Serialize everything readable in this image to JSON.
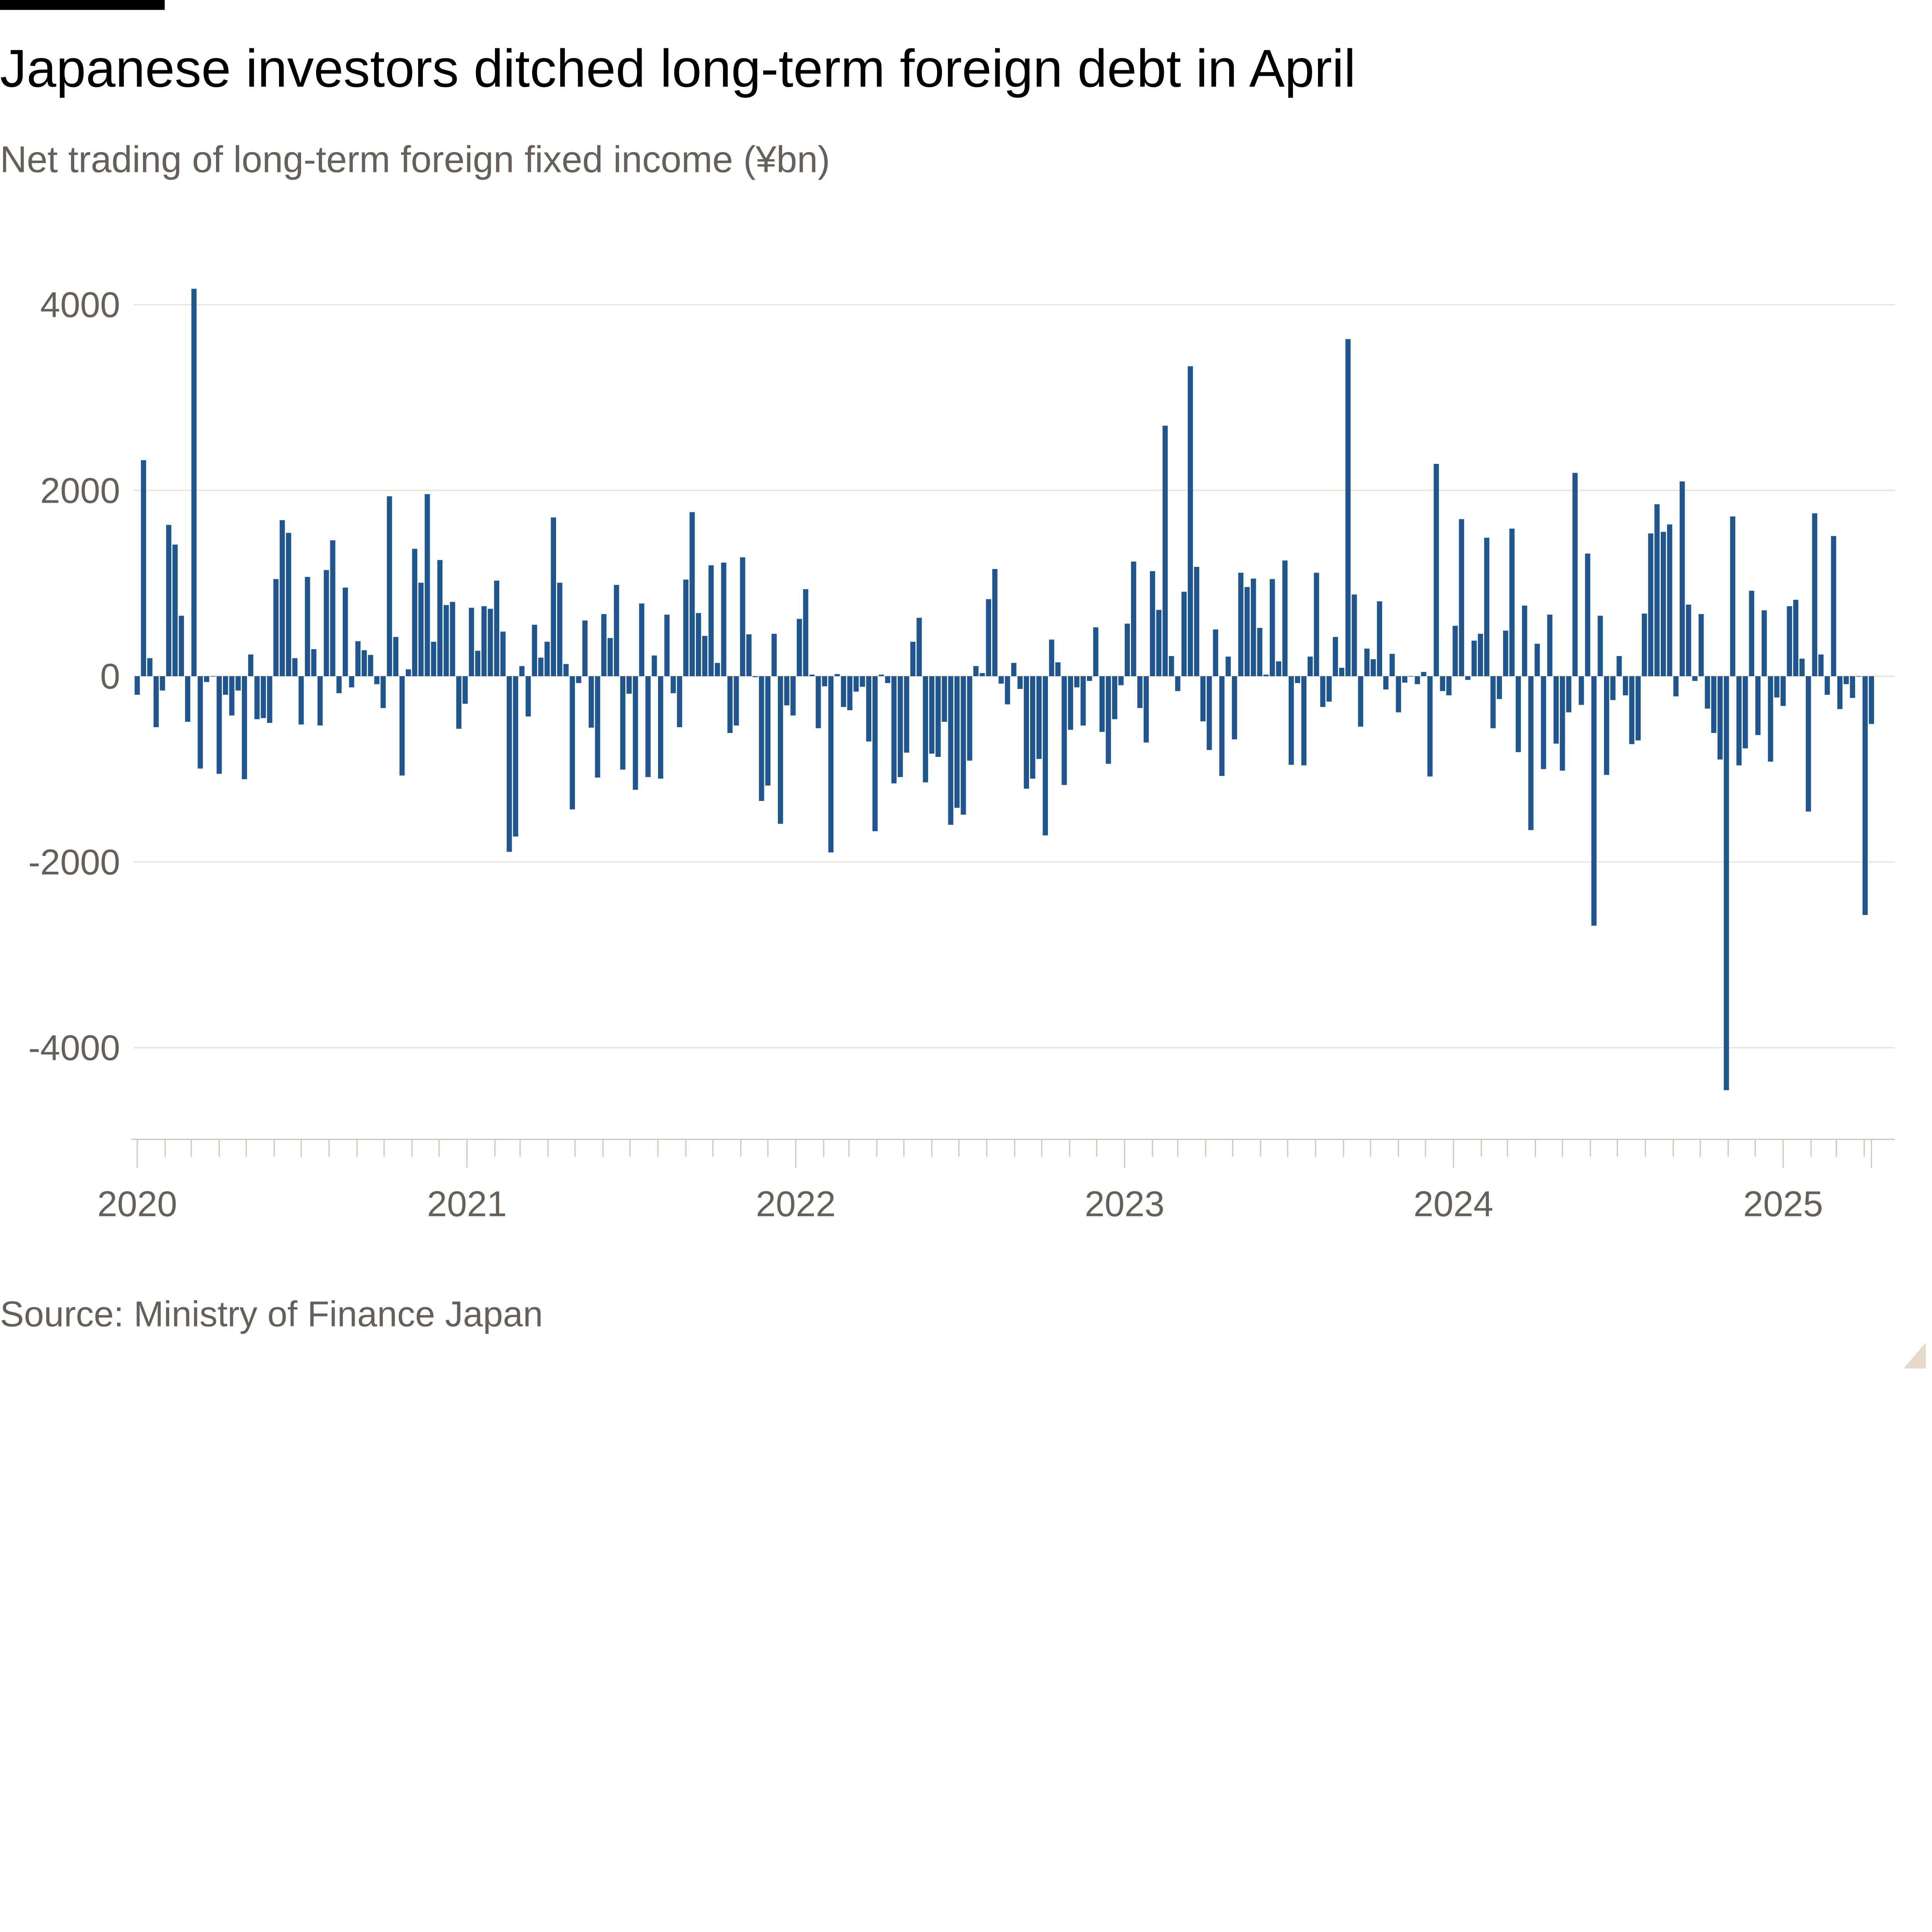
{
  "header": {
    "title": "Japanese investors ditched long-term foreign debt in April",
    "subtitle": "Net trading of long-term foreign fixed income (¥bn)"
  },
  "footer": {
    "source": "Source: Ministry of Finance Japan"
  },
  "colors": {
    "bar": "#1f5690",
    "grid": "#e9e2d8",
    "axis": "#cfc8c0",
    "text": "#66605c",
    "title": "#000000",
    "brand_bar": "#000000",
    "corner": "#e6d9cc"
  },
  "chart_data": {
    "type": "bar",
    "title": "Japanese investors ditched long-term foreign debt in April",
    "subtitle": "Net trading of long-term foreign fixed income (¥bn)",
    "xlabel": "",
    "ylabel": "",
    "frequency": "weekly",
    "x_range": [
      "2020-01",
      "2025-04"
    ],
    "xticks": [
      "2020",
      "2021",
      "2022",
      "2023",
      "2024",
      "2025"
    ],
    "yticks": [
      4000,
      2000,
      0,
      -2000,
      -4000
    ],
    "ylim": [
      -5000,
      4200
    ],
    "grid": true,
    "legend": "none",
    "values": [
      -200,
      2326,
      194,
      -549,
      -154,
      1629,
      1417,
      651,
      -491,
      4171,
      -994,
      -63,
      0,
      -1051,
      -200,
      -423,
      -154,
      -1109,
      234,
      -463,
      -451,
      -503,
      1046,
      1680,
      1543,
      194,
      -520,
      1069,
      291,
      -531,
      1143,
      1463,
      -183,
      954,
      -120,
      377,
      280,
      229,
      -86,
      -343,
      1937,
      423,
      -1069,
      74,
      1371,
      1006,
      1960,
      371,
      1251,
      766,
      800,
      -566,
      -297,
      737,
      274,
      754,
      726,
      1029,
      480,
      -1891,
      -1726,
      109,
      -434,
      554,
      200,
      371,
      1709,
      1006,
      131,
      -1434,
      -74,
      600,
      -554,
      -1091,
      669,
      411,
      983,
      -1006,
      -189,
      -1223,
      783,
      -1086,
      223,
      -1103,
      663,
      -183,
      -549,
      1040,
      1766,
      680,
      434,
      1194,
      143,
      1223,
      -611,
      -531,
      1280,
      451,
      -11,
      -1343,
      -1177,
      457,
      -1589,
      -314,
      -423,
      617,
      937,
      17,
      -560,
      -109,
      -1897,
      23,
      -331,
      -366,
      -166,
      -114,
      -703,
      -1669,
      17,
      -74,
      -1154,
      -1086,
      -823,
      371,
      629,
      -1143,
      -834,
      -869,
      -491,
      -1600,
      -1417,
      -1491,
      -909,
      109,
      34,
      829,
      1154,
      -80,
      -303,
      143,
      -137,
      -1211,
      -1103,
      -891,
      -1714,
      394,
      149,
      -1171,
      -577,
      -120,
      -531,
      -51,
      526,
      -600,
      -943,
      -463,
      -97,
      566,
      1234,
      -343,
      -714,
      1131,
      714,
      2697,
      217,
      -160,
      909,
      3337,
      1177,
      -486,
      -794,
      503,
      -1074,
      211,
      -680,
      1114,
      960,
      1051,
      520,
      17,
      1046,
      160,
      1246,
      -954,
      -74,
      -960,
      211,
      1114,
      -331,
      -274,
      423,
      91,
      3629,
      880,
      -543,
      297,
      183,
      806,
      -143,
      240,
      -389,
      -69,
      -5,
      -86,
      46,
      -1080,
      2286,
      -160,
      -206,
      543,
      1691,
      -40,
      383,
      457,
      1491,
      -560,
      -246,
      491,
      1589,
      -817,
      760,
      -1657,
      349,
      -1000,
      663,
      -726,
      -1017,
      -389,
      2189,
      -309,
      1320,
      -2686,
      651,
      -1063,
      -257,
      217,
      -206,
      -731,
      -691,
      674,
      1537,
      1851,
      1554,
      1634,
      -217,
      2097,
      771,
      -51,
      669,
      -349,
      -611,
      -897,
      -4457,
      1720,
      -960,
      -777,
      920,
      -634,
      709,
      -920,
      -229,
      -320,
      754,
      823,
      189,
      -1457,
      1754,
      234,
      -200,
      1509,
      -354,
      -86,
      -234,
      -5,
      -2571,
      -514
    ]
  }
}
